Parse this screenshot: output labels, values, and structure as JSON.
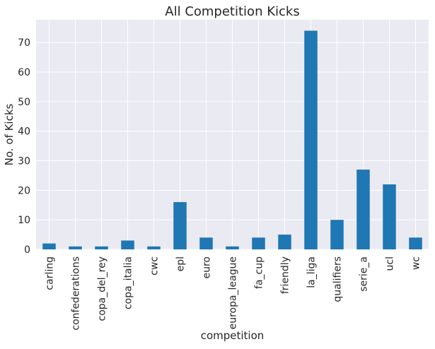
{
  "chart_data": {
    "type": "bar",
    "title": "All Competition Kicks",
    "xlabel": "competition",
    "ylabel": "No. of Kicks",
    "categories": [
      "carling",
      "confederations",
      "copa_del_rey",
      "copa_italia",
      "cwc",
      "epl",
      "euro",
      "europa_league",
      "fa_cup",
      "friendly",
      "la_liga",
      "qualifiers",
      "serie_a",
      "ucl",
      "wc"
    ],
    "values": [
      2,
      1,
      1,
      3,
      1,
      16,
      4,
      1,
      4,
      5,
      74,
      10,
      27,
      22,
      4
    ],
    "ylim": [
      0,
      77.7
    ],
    "yticks": [
      0,
      10,
      20,
      30,
      40,
      50,
      60,
      70
    ],
    "grid": true,
    "legend": "none",
    "bar_color": "#1f77b4",
    "background_color": "#eaeaf2",
    "grid_color": "#ffffff"
  }
}
